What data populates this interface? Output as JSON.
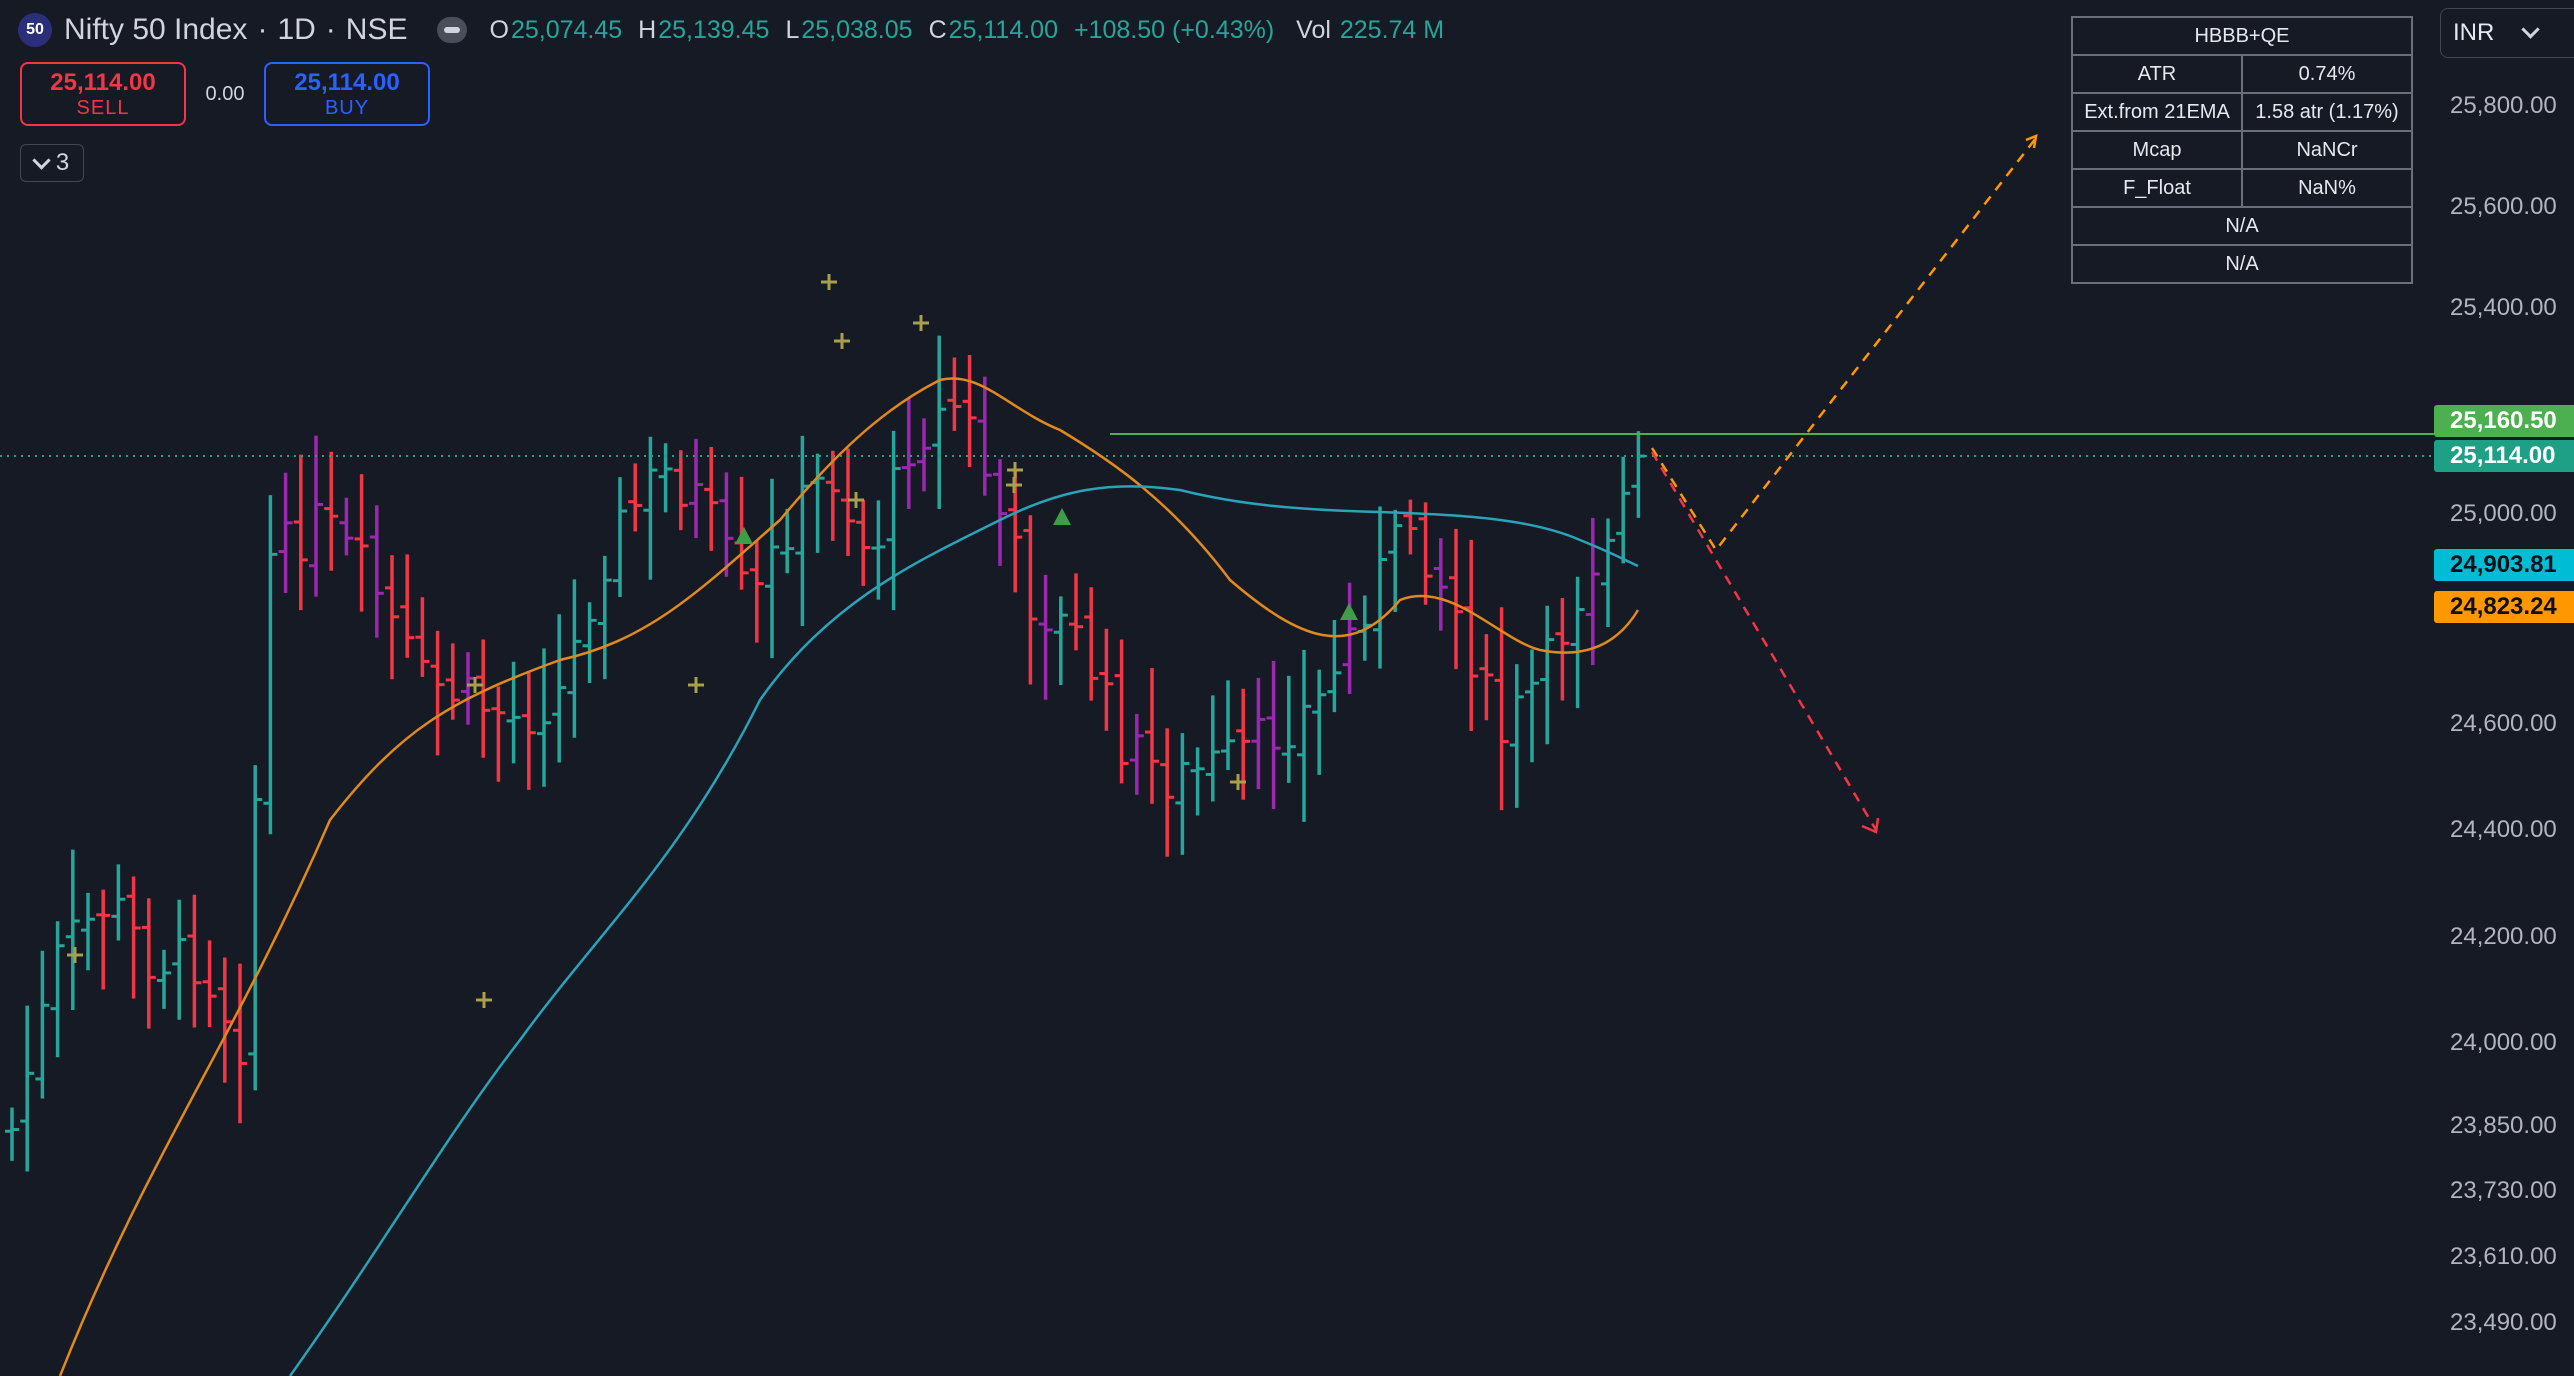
{
  "header": {
    "symbol_badge": "50",
    "symbol_name": "Nifty 50 Index",
    "interval": "1D",
    "exchange": "NSE",
    "sep": "·",
    "open_label": "O",
    "open": "25,074.45",
    "high_label": "H",
    "high": "25,139.45",
    "low_label": "L",
    "low": "25,038.05",
    "close_label": "C",
    "close": "25,114.00",
    "change": "+108.50 (+0.43%)",
    "vol_label": "Vol",
    "volume": "225.74 M"
  },
  "trade": {
    "sell_price": "25,114.00",
    "sell_label": "SELL",
    "spread": "0.00",
    "buy_price": "25,114.00",
    "buy_label": "BUY"
  },
  "indicators_toggle": {
    "count": "3"
  },
  "currency": "INR",
  "info_table": {
    "title": "HBBB+QE",
    "rows": [
      {
        "label": "ATR",
        "value": "0.74%"
      },
      {
        "label": "Ext.from 21EMA",
        "value": "1.58 atr (1.17%)"
      },
      {
        "label": "Mcap",
        "value": "NaNCr"
      },
      {
        "label": "F_Float",
        "value": "NaN%"
      }
    ],
    "extra1": "N/A",
    "extra2": "N/A"
  },
  "price_axis": {
    "ticks": [
      "25,800.00",
      "25,600.00",
      "25,400.00",
      "25,000.00",
      "24,600.00",
      "24,400.00",
      "24,200.00",
      "24,000.00",
      "23,850.00",
      "23,730.00",
      "23,610.00",
      "23,490.00"
    ],
    "labels": {
      "resistance": "25,160.50",
      "last": "25,114.00",
      "ma_slow": "24,903.81",
      "ma_fast": "24,823.24"
    }
  },
  "colors": {
    "up": "#26a69a",
    "down": "#f23645",
    "purple": "#9c27b0",
    "ema_fast": "#e08a1e",
    "ema_slow": "#2aa3b8",
    "projection_up": "#ff9800",
    "projection_down": "#f23645",
    "resistance": "#4caf50",
    "background": "#161a25"
  },
  "chart_data": {
    "type": "ohlc",
    "symbol": "Nifty 50 Index",
    "interval": "1D",
    "y_ticks": [
      25800,
      25600,
      25400,
      25000,
      24600,
      24400,
      24200,
      24000,
      23850,
      23730,
      23610,
      23490
    ],
    "last_price": 25114.0,
    "resistance_level": 25160.5,
    "series": [
      {
        "name": "ma_fast",
        "last_value": 24823.24
      },
      {
        "name": "ma_slow",
        "last_value": 24903.81
      }
    ]
  }
}
